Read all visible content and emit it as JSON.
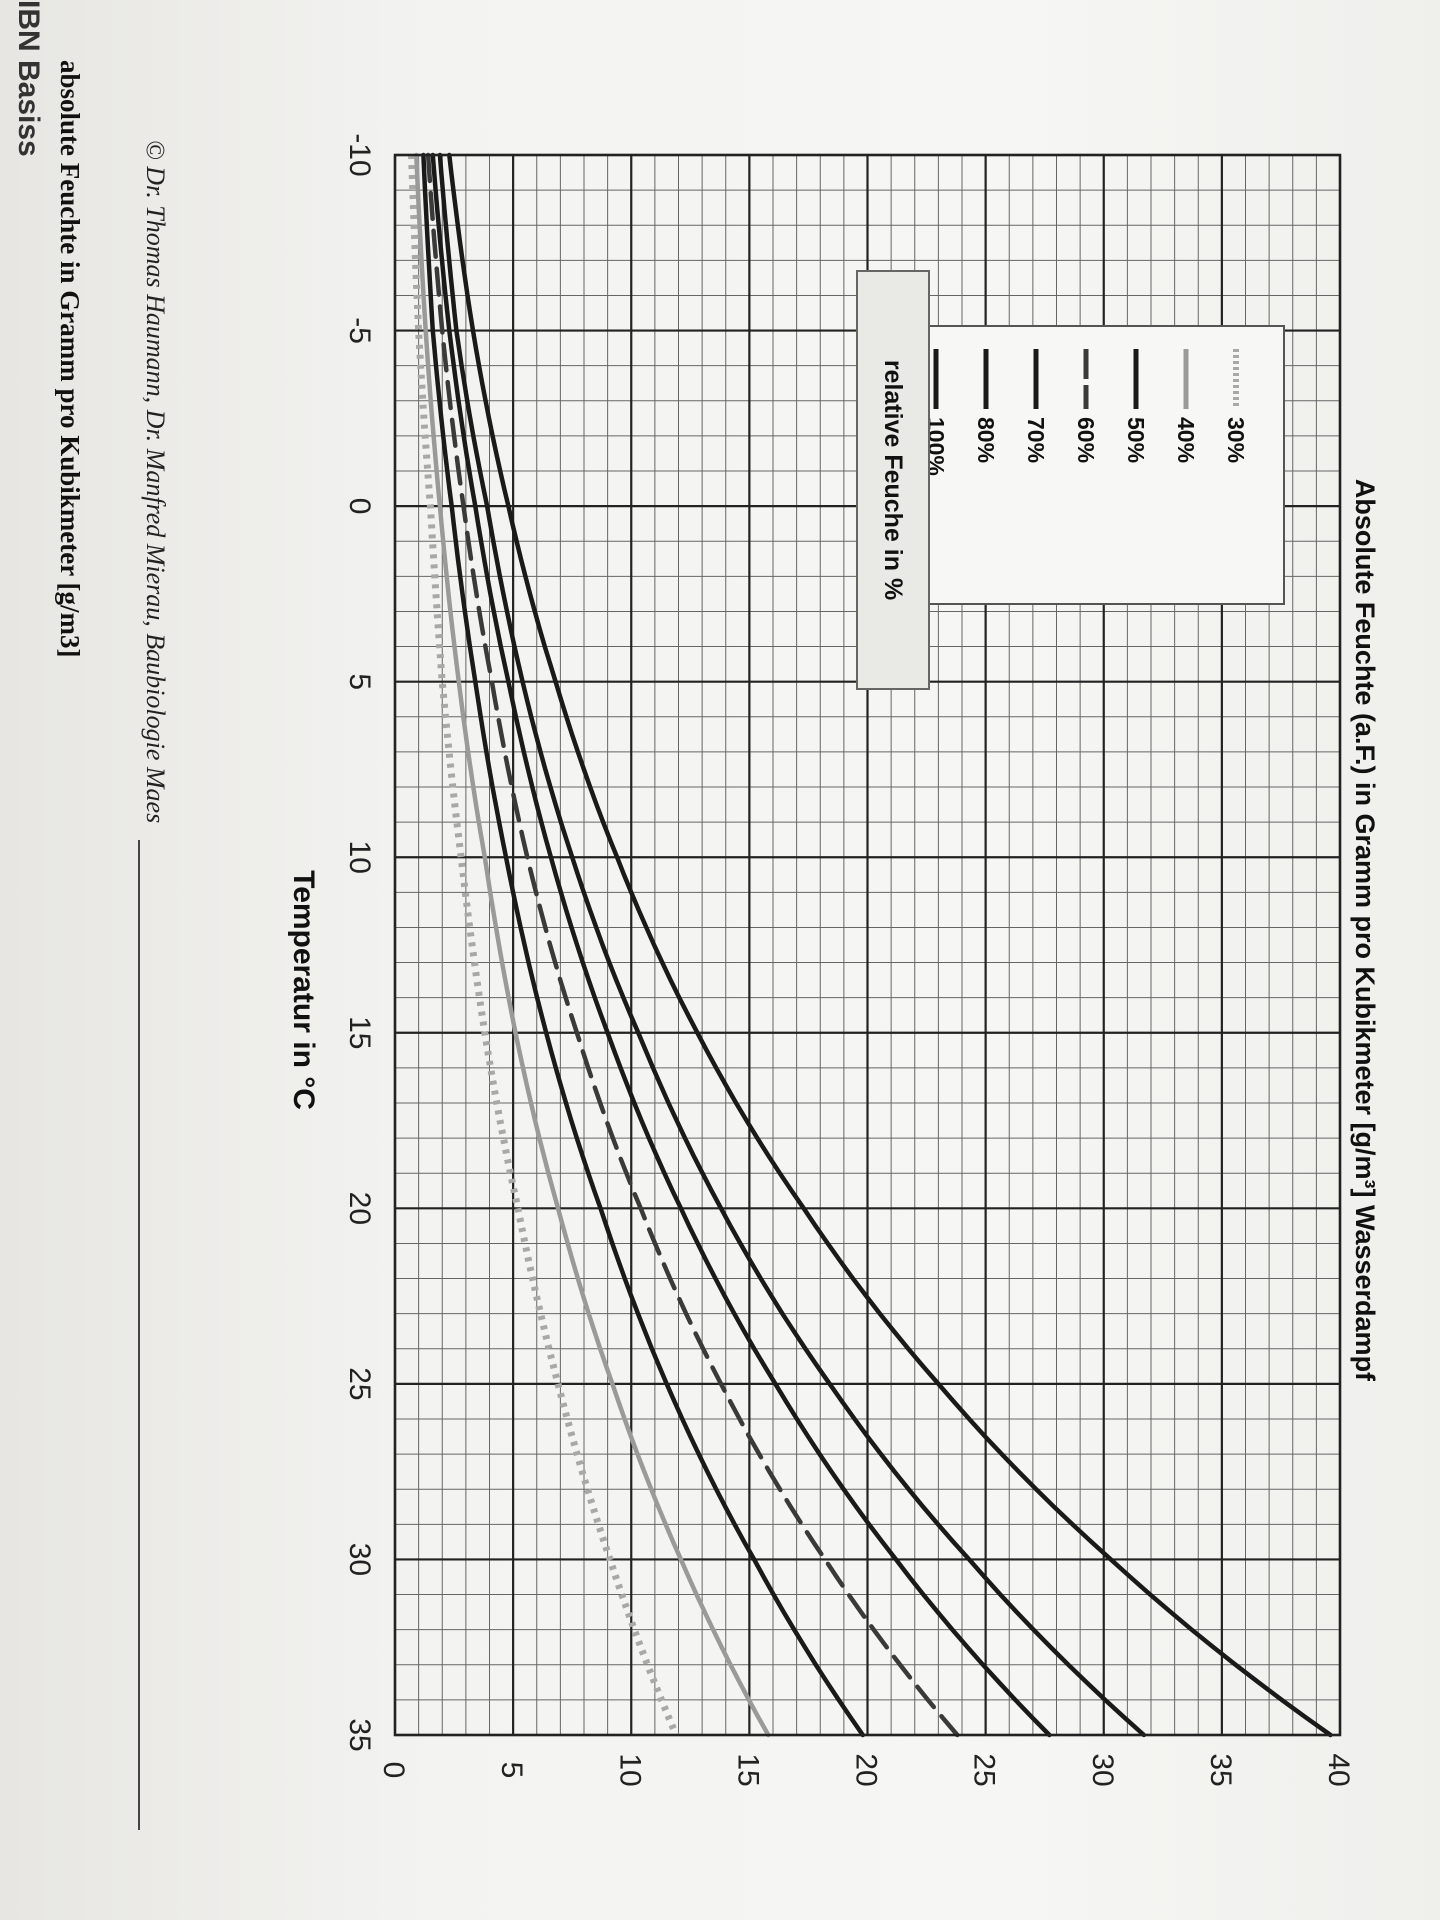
{
  "chart_data": {
    "type": "line",
    "title": "Absolute Feuchte (a.F.) in Gramm pro Kubikmeter [g/m³] Wasserdampf",
    "xlabel": "Temperatur in °C",
    "ylabel": "absolute Feuchte in Gramm pro Kubikmeter [g/m3]",
    "xlim": [
      -10,
      35
    ],
    "ylim": [
      0,
      40
    ],
    "xticks": [
      "-10",
      "-5",
      "0",
      "5",
      "10",
      "15",
      "20",
      "25",
      "30",
      "35"
    ],
    "yticks": [
      "0",
      "5",
      "10",
      "15",
      "20",
      "25",
      "30",
      "35",
      "40"
    ],
    "grid": true,
    "legend_title": "relative Feuche in %",
    "legend_position": "top-left",
    "x": [
      -10,
      -5,
      0,
      5,
      10,
      15,
      20,
      25,
      30,
      35
    ],
    "series": [
      {
        "name": "30%",
        "color": "#a8a8a8",
        "dash": "dotted",
        "values": [
          0.7,
          1.0,
          1.5,
          2.0,
          2.8,
          3.8,
          5.2,
          6.9,
          9.1,
          11.9
        ]
      },
      {
        "name": "40%",
        "color": "#9a9a9a",
        "dash": "solid",
        "values": [
          0.9,
          1.3,
          1.9,
          2.7,
          3.8,
          5.1,
          6.9,
          9.2,
          12.1,
          15.8
        ]
      },
      {
        "name": "50%",
        "color": "#1a1a1a",
        "dash": "solid",
        "values": [
          1.2,
          1.6,
          2.4,
          3.4,
          4.7,
          6.4,
          8.7,
          11.5,
          15.2,
          19.8
        ]
      },
      {
        "name": "60%",
        "color": "#3a3a3a",
        "dash": "dashed",
        "values": [
          1.4,
          2.0,
          2.9,
          4.1,
          5.6,
          7.7,
          10.4,
          13.8,
          18.2,
          23.8
        ]
      },
      {
        "name": "70%",
        "color": "#1a1a1a",
        "dash": "solid",
        "values": [
          1.6,
          2.3,
          3.4,
          4.8,
          6.6,
          9.0,
          12.1,
          16.1,
          21.2,
          27.7
        ]
      },
      {
        "name": "80%",
        "color": "#1a1a1a",
        "dash": "solid",
        "values": [
          1.9,
          2.6,
          3.9,
          5.4,
          7.5,
          10.3,
          13.8,
          18.4,
          24.3,
          31.7
        ]
      },
      {
        "name": "100%",
        "color": "#1a1a1a",
        "dash": "solid",
        "values": [
          2.3,
          3.3,
          4.8,
          6.8,
          9.4,
          12.8,
          17.3,
          23.0,
          30.3,
          39.6
        ]
      }
    ]
  },
  "copyright": "© Dr. Thomas Haumann, Dr. Manfred Mierau, Baubiologie Maes",
  "edge_text": "IBN Basiss"
}
